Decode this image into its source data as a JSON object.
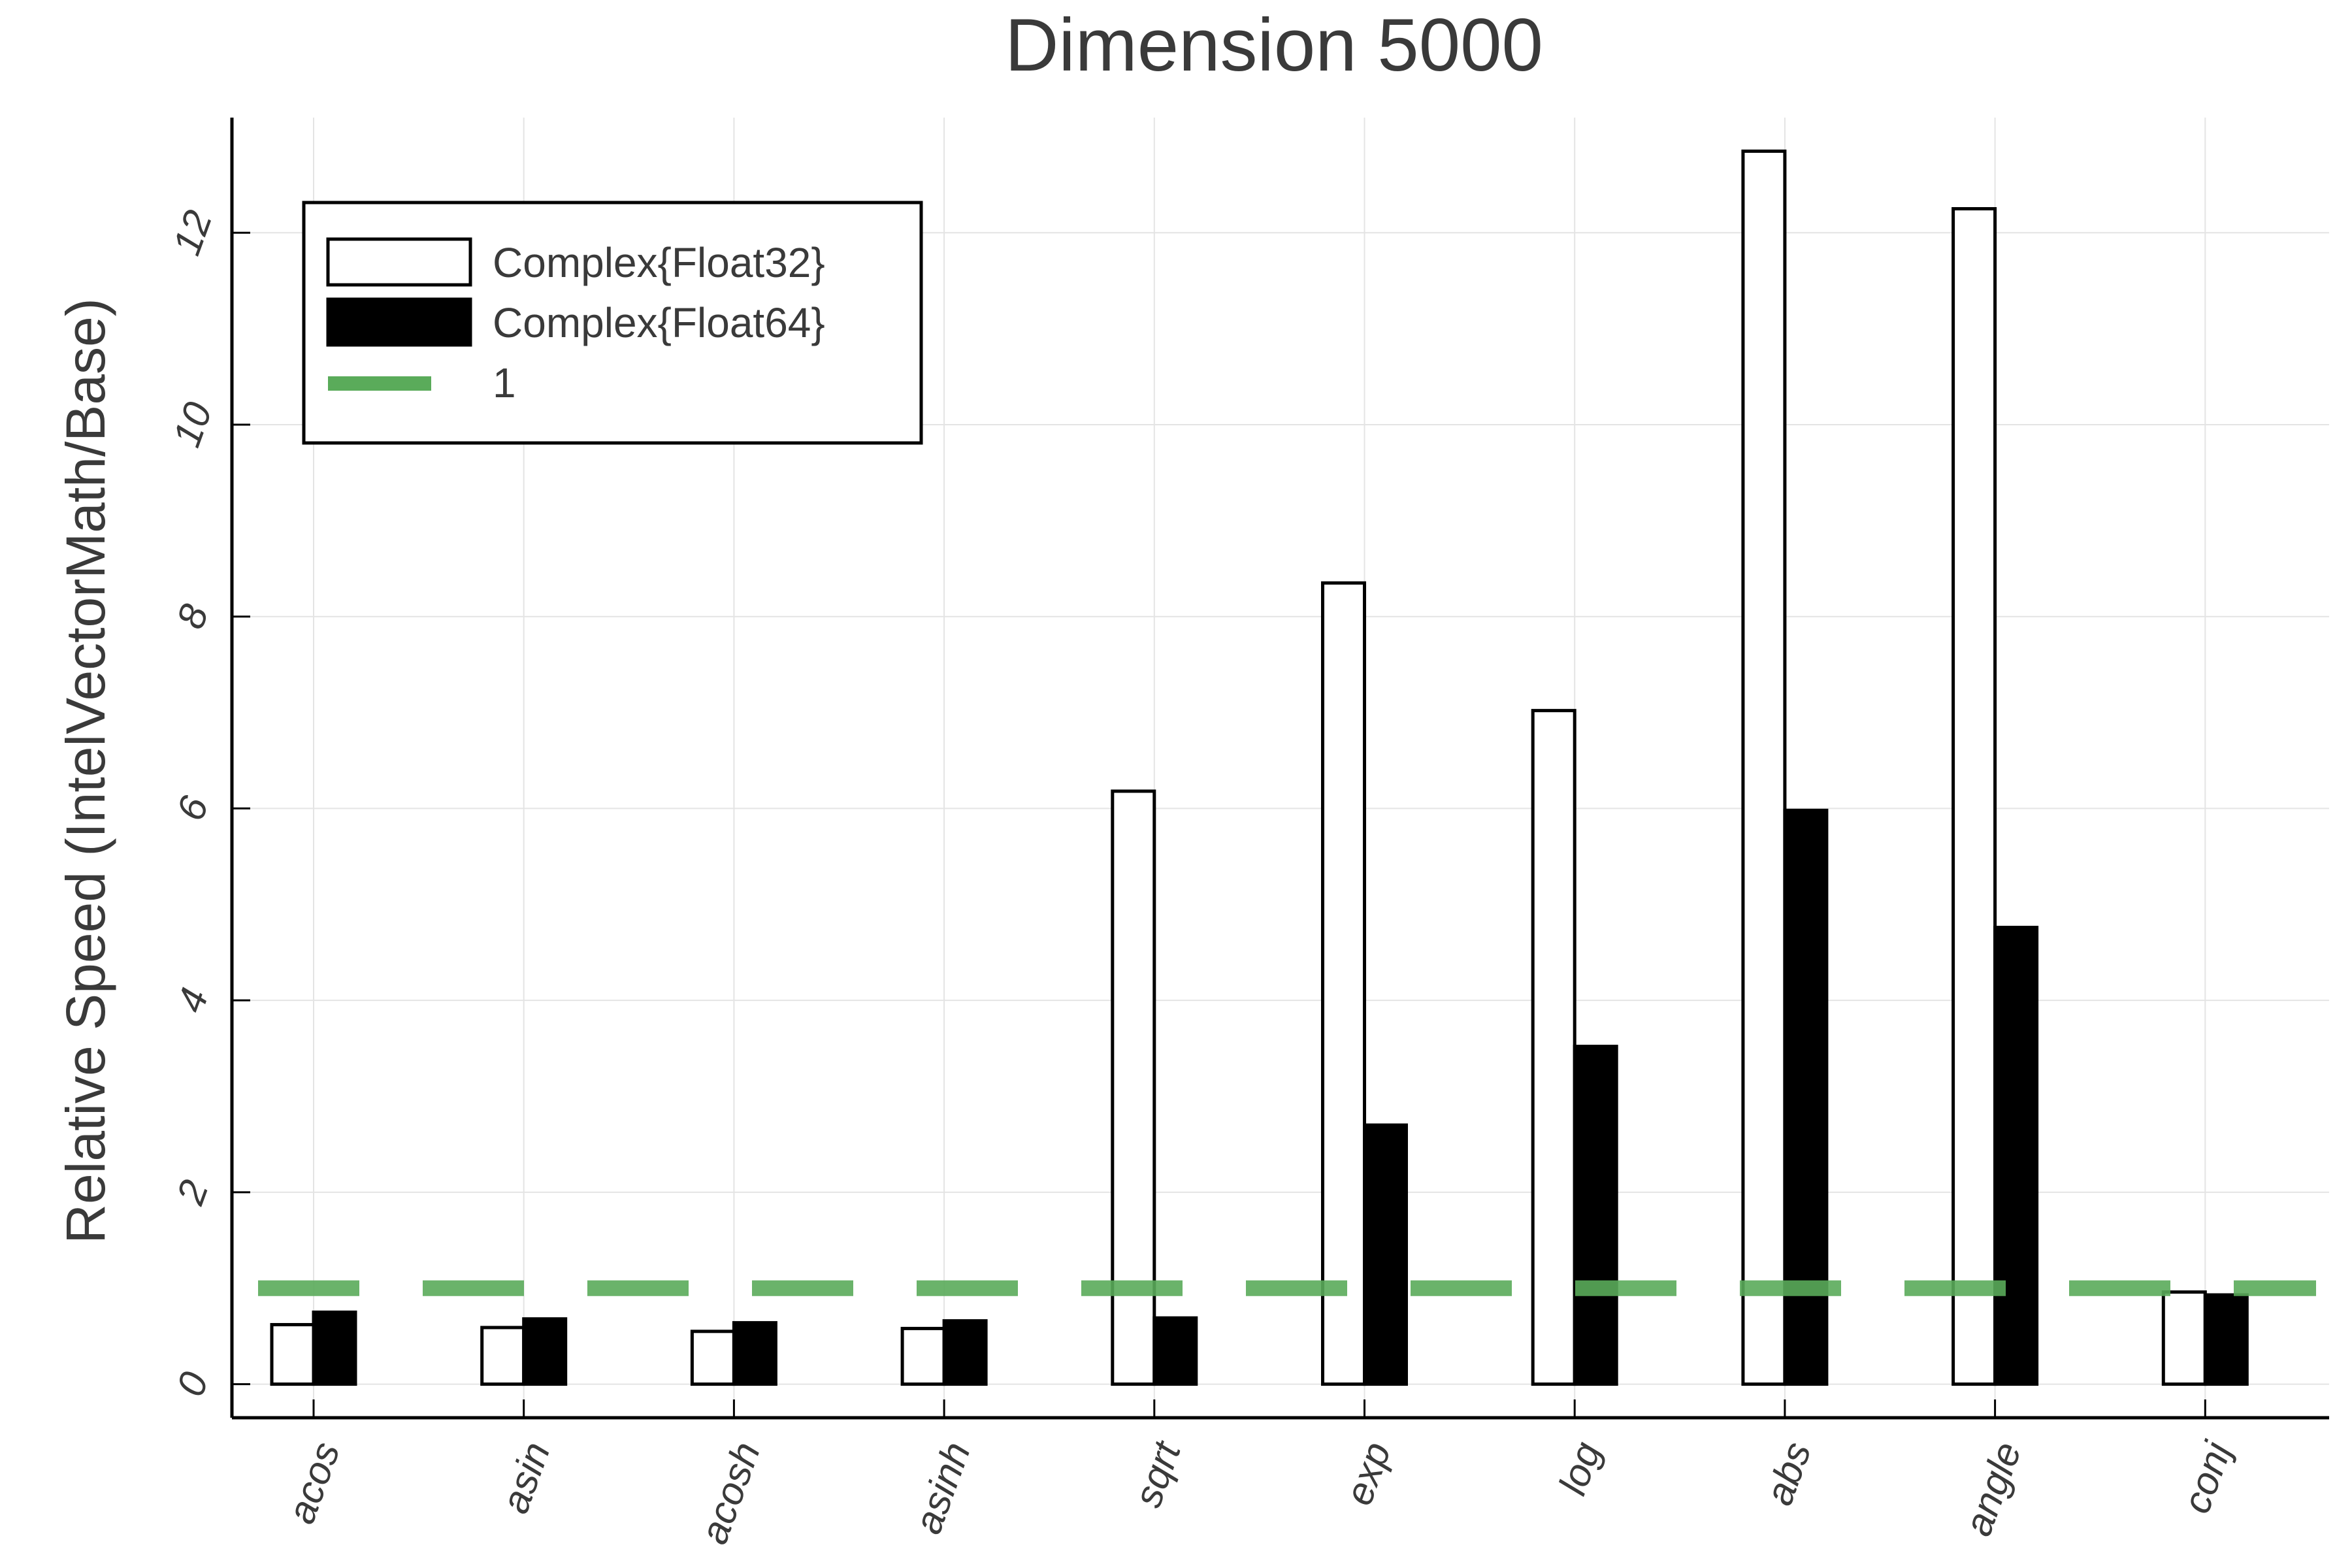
{
  "chart_data": {
    "type": "bar",
    "title": "Dimension 5000",
    "xlabel": "",
    "ylabel": "Relative Speed (IntelVectorMath/Base)",
    "categories": [
      "acos",
      "asin",
      "acosh",
      "asinh",
      "sqrt",
      "exp",
      "log",
      "abs",
      "angle",
      "conj"
    ],
    "series": [
      {
        "name": "Complex{Float32}",
        "fill": "#ffffff",
        "stroke": "#000000",
        "values": [
          0.62,
          0.59,
          0.55,
          0.58,
          6.18,
          8.35,
          7.02,
          12.85,
          12.25,
          0.96
        ]
      },
      {
        "name": "Complex{Float64}",
        "fill": "#000000",
        "stroke": "#000000",
        "values": [
          0.75,
          0.68,
          0.64,
          0.66,
          0.69,
          2.7,
          3.52,
          5.98,
          4.76,
          0.93
        ]
      }
    ],
    "reference_line": {
      "name": "1",
      "value": 1,
      "color": "#5aab5a",
      "style": "dashed"
    },
    "ylim": [
      -0.35,
      13.2
    ],
    "yticks": [
      0,
      2,
      4,
      6,
      8,
      10,
      12
    ],
    "grid": true,
    "legend_position": "top-left"
  }
}
